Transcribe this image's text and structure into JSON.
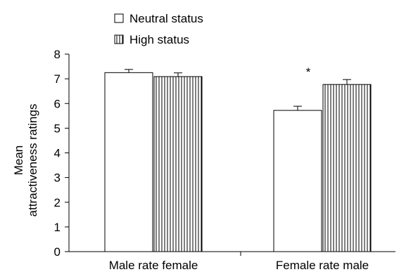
{
  "chart_data": {
    "type": "bar",
    "title": "",
    "xlabel": "",
    "ylabel_lines": [
      "Mean",
      "attractiveness ratings"
    ],
    "categories": [
      "Male rate female",
      "Female rate male"
    ],
    "series": [
      {
        "name": "Neutral status",
        "pattern": "open",
        "values": [
          7.25,
          5.72
        ],
        "errors": [
          0.13,
          0.17
        ]
      },
      {
        "name": "High status",
        "pattern": "vertical-stripes",
        "values": [
          7.09,
          6.77
        ],
        "errors": [
          0.15,
          0.2
        ]
      }
    ],
    "ylim": [
      0,
      8
    ],
    "yticks": [
      0,
      1,
      2,
      3,
      4,
      5,
      6,
      7,
      8
    ],
    "annotations": [
      {
        "text": "*",
        "category_index": 1
      }
    ],
    "legend_position": "top-left",
    "grid": false,
    "colors": {
      "bar_fill": "#ffffff",
      "stroke": "#000000",
      "stripe": "#000000"
    }
  }
}
